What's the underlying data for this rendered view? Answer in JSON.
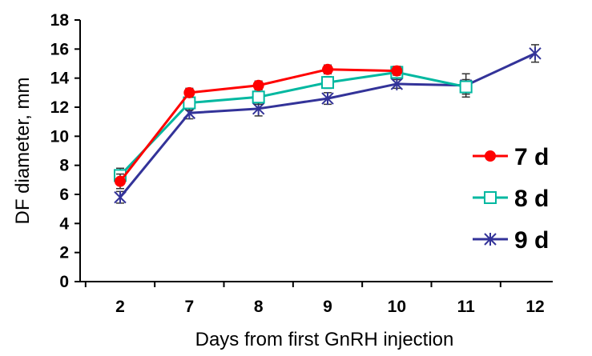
{
  "chart_data": {
    "type": "line",
    "title": "",
    "xlabel": "Days from first GnRH injection",
    "ylabel": "DF diameter, mm",
    "categories": [
      "2",
      "7",
      "8",
      "9",
      "10",
      "11",
      "12"
    ],
    "ylim": [
      0,
      18
    ],
    "yticks": [
      0,
      2,
      4,
      6,
      8,
      10,
      12,
      14,
      16,
      18
    ],
    "grid": false,
    "legend_position": "right",
    "series": [
      {
        "name": "7 d",
        "color": "#ff0000",
        "marker": "filled-circle",
        "values": [
          6.9,
          13.0,
          13.5,
          14.6,
          14.5,
          null,
          null
        ],
        "errors": [
          0.5,
          0.3,
          0.3,
          0.3,
          0.3,
          null,
          null
        ]
      },
      {
        "name": "8 d",
        "color": "#00b8a0",
        "marker": "open-square",
        "values": [
          7.3,
          12.3,
          12.7,
          13.7,
          14.4,
          13.4,
          null
        ],
        "errors": [
          0.5,
          0.5,
          0.5,
          0.4,
          0.4,
          0.5,
          null
        ]
      },
      {
        "name": "9 d",
        "color": "#333399",
        "marker": "asterisk",
        "values": [
          5.8,
          11.6,
          11.9,
          12.6,
          13.6,
          13.5,
          15.7
        ],
        "errors": [
          0.4,
          0.4,
          0.5,
          0.4,
          0.3,
          0.8,
          0.6
        ]
      }
    ]
  }
}
